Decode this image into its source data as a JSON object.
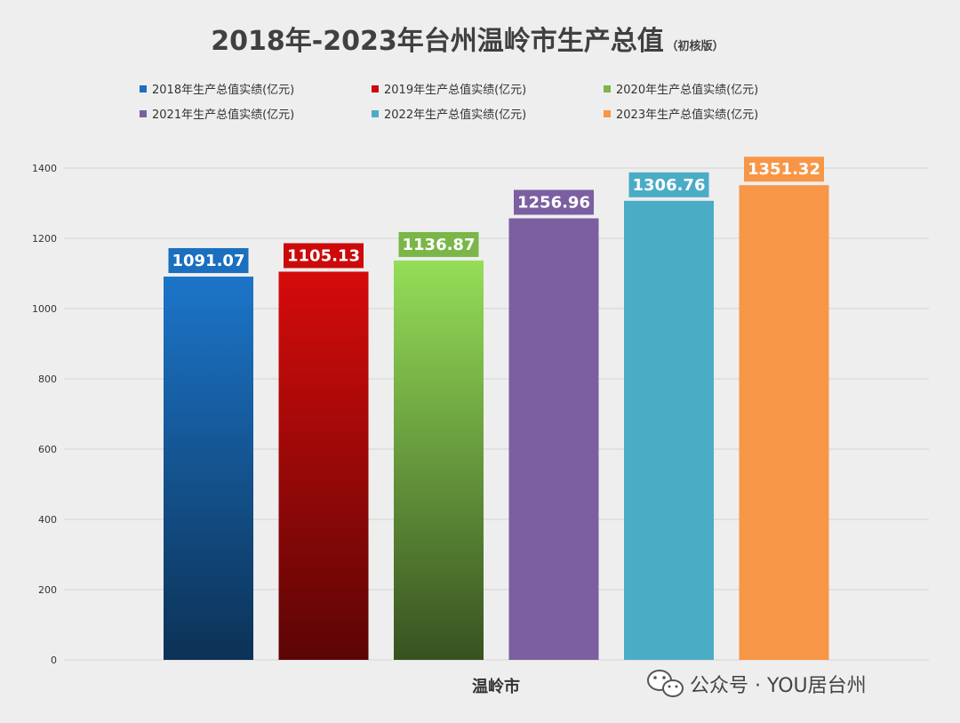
{
  "chart_data": {
    "type": "bar",
    "title": "2018年-2023年台州温岭市生产总值",
    "subtitle": "（初核版）",
    "categories": [
      "温岭市"
    ],
    "series": [
      {
        "name": "2018年生产总值实绩(亿元)",
        "values": [
          1091.07
        ],
        "color": "#1b6fbf"
      },
      {
        "name": "2019年生产总值实绩(亿元)",
        "values": [
          1105.13
        ],
        "color": "#cc0a0a"
      },
      {
        "name": "2020年生产总值实绩(亿元)",
        "values": [
          1136.87
        ],
        "color": "#7ab648"
      },
      {
        "name": "2021年生产总值实绩(亿元)",
        "values": [
          1256.96
        ],
        "color": "#7b5fa1"
      },
      {
        "name": "2022年生产总值实绩(亿元)",
        "values": [
          1306.76
        ],
        "color": "#4bacc6"
      },
      {
        "name": "2023年生产总值实绩(亿元)",
        "values": [
          1351.32
        ],
        "color": "#f79646"
      }
    ],
    "value_labels": [
      "1091.07",
      "1105.13",
      "1136.87",
      "1256.96",
      "1306.76",
      "1351.32"
    ],
    "ylim": [
      0,
      1400
    ],
    "yticks": [
      0,
      200,
      400,
      600,
      800,
      1000,
      1200,
      1400
    ],
    "grid": true,
    "legend_position": "top",
    "xlabel": "",
    "ylabel": ""
  },
  "watermark": {
    "icon": "wechat-icon",
    "text": "公众号 · YOU居台州"
  }
}
